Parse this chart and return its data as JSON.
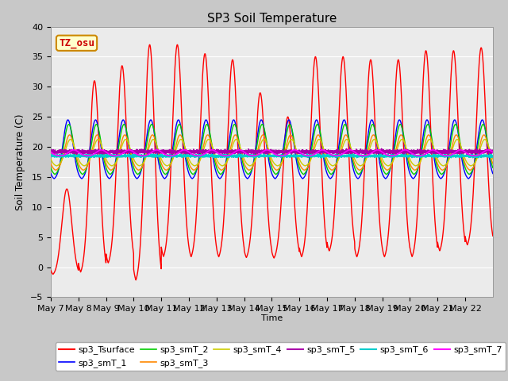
{
  "title": "SP3 Soil Temperature",
  "ylabel": "Soil Temperature (C)",
  "xlabel": "Time",
  "ylim": [
    -5,
    40
  ],
  "annotation_text": "TZ_osu",
  "annotation_color": "#cc0000",
  "annotation_bg": "#ffffcc",
  "annotation_border": "#cc8800",
  "x_tick_labels": [
    "May 7",
    "May 8",
    "May 9",
    "May 10",
    "May 11",
    "May 12",
    "May 13",
    "May 14",
    "May 15",
    "May 16",
    "May 17",
    "May 18",
    "May 19",
    "May 20",
    "May 21",
    "May 22"
  ],
  "series": {
    "sp3_Tsurface": {
      "color": "#ff0000",
      "lw": 1.0
    },
    "sp3_smT_1": {
      "color": "#0000ff",
      "lw": 1.0
    },
    "sp3_smT_2": {
      "color": "#00cc00",
      "lw": 1.0
    },
    "sp3_smT_3": {
      "color": "#ff8800",
      "lw": 1.0
    },
    "sp3_smT_4": {
      "color": "#cccc00",
      "lw": 1.0
    },
    "sp3_smT_5": {
      "color": "#aa00aa",
      "lw": 1.2
    },
    "sp3_smT_6": {
      "color": "#00cccc",
      "lw": 1.2
    },
    "sp3_smT_7": {
      "color": "#ff00ff",
      "lw": 1.2
    }
  },
  "plot_bg": "#ebebeb",
  "grid_color": "#ffffff",
  "fig_bg": "#c8c8c8",
  "n_days": 16,
  "pts_per_day": 288
}
